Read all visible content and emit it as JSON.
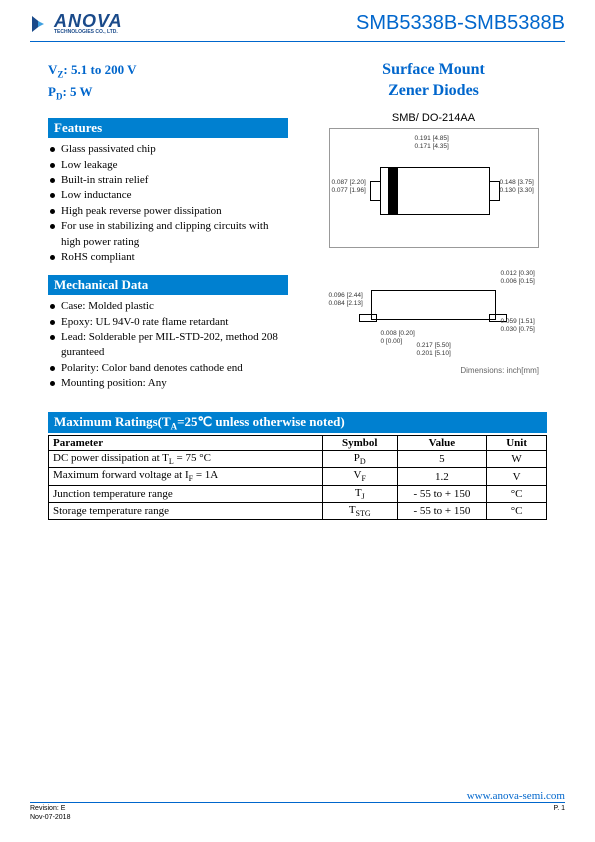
{
  "header": {
    "logo_main": "ANOVA",
    "logo_sub": "TECHNOLOGIES CO., LTD.",
    "part_number": "SMB5338B-SMB5388B"
  },
  "specs": {
    "line1_html": "V<sub>Z</sub>: 5.1 to 200 V",
    "line2_html": "P<sub>D</sub>: 5 W"
  },
  "product_title_line1": "Surface Mount",
  "product_title_line2": "Zener Diodes",
  "package_label": "SMB/ DO-214AA",
  "features_title": "Features",
  "features": [
    "Glass passivated chip",
    "Low leakage",
    "Built-in strain relief",
    "Low inductance",
    "High peak reverse power dissipation",
    "For use in stabilizing and clipping circuits with high power rating",
    "RoHS compliant"
  ],
  "mech_title": "Mechanical Data",
  "mech": [
    "Case: Molded plastic",
    "Epoxy: UL 94V-0 rate flame retardant",
    "Lead: Solderable per MIL-STD-202, method 208 guranteed",
    "Polarity: Color band denotes cathode end",
    "Mounting position: Any"
  ],
  "dim_labels_top": {
    "a": "0.191 [4.85]",
    "b": "0.171 [4.35]",
    "c": "0.087 [2.20]",
    "d": "0.077 [1.96]",
    "e": "0.148 [3.75]",
    "f": "0.130 [3.30]"
  },
  "dim_labels_side": {
    "g": "0.012 [0.30]",
    "h": "0.006 [0.15]",
    "i": "0.096 [2.44]",
    "j": "0.084 [2.13]",
    "k": "0.008 [0.20]",
    "l": "0    [0.00]",
    "m": "0.059 [1.51]",
    "n": "0.030 [0.75]",
    "o": "0.217 [5.50]",
    "p": "0.201 [5.10]"
  },
  "dims_note": "Dimensions: inch[mm]",
  "ratings_title_html": "Maximum Ratings(T<sub>A</sub>=25℃ unless otherwise noted)",
  "ratings_table": {
    "columns": [
      "Parameter",
      "Symbol",
      "Value",
      "Unit"
    ],
    "rows": [
      {
        "param_html": "DC power dissipation at T<sub>L</sub> = 75 °C",
        "symbol_html": "P<sub>D</sub>",
        "value": "5",
        "unit": "W"
      },
      {
        "param_html": "Maximum forward voltage at I<sub>F</sub> = 1A",
        "symbol_html": "V<sub>F</sub>",
        "value": "1.2",
        "unit": "V"
      },
      {
        "param_html": "Junction temperature range",
        "symbol_html": "T<sub>J</sub>",
        "value": "- 55 to + 150",
        "unit": "°C"
      },
      {
        "param_html": "Storage temperature range",
        "symbol_html": "T<sub>STG</sub>",
        "value": "- 55 to + 150",
        "unit": "°C"
      }
    ],
    "col_widths": [
      "55%",
      "15%",
      "18%",
      "12%"
    ]
  },
  "footer": {
    "url": "www.anova-semi.com",
    "rev": "Revision: E",
    "date": "Nov-07-2018",
    "page": "P. 1"
  },
  "colors": {
    "brand_blue": "#0066cc",
    "bar_blue": "#0080d0"
  }
}
